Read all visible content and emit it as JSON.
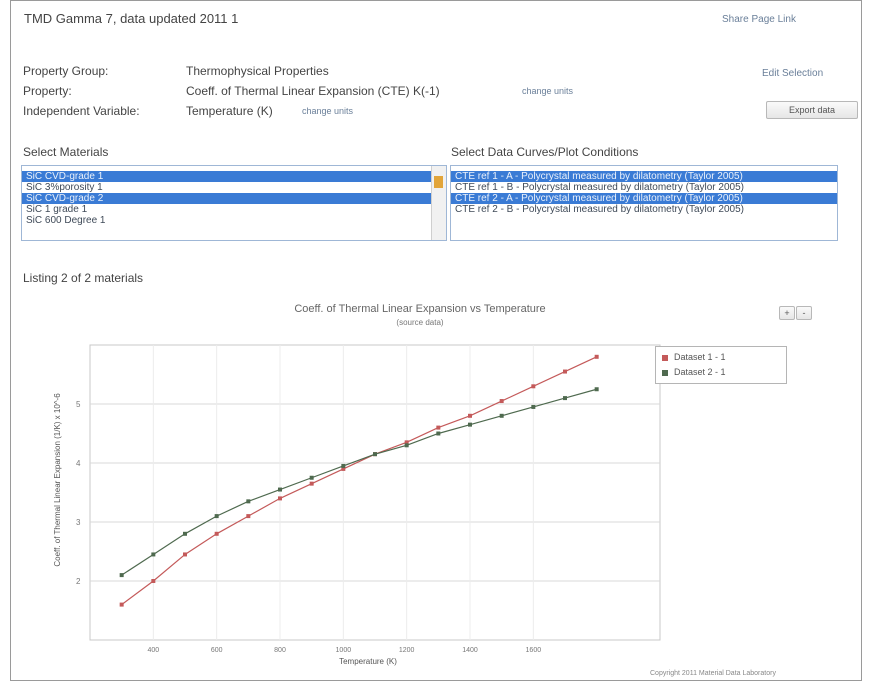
{
  "header": {
    "title": "TMD Gamma 7, data updated 2011 1",
    "link_right": "Share Page Link"
  },
  "fields": {
    "property_group_label": "Property Group:",
    "property_group_value": "Thermophysical Properties",
    "property_label": "Property:",
    "property_value": "Coeff. of Thermal Linear Expansion (CTE) K(-1)",
    "property_link": "change units",
    "indep_label": "Independent Variable:",
    "indep_value": "Temperature (K)",
    "indep_link": "change units",
    "edit_link": "Edit Selection",
    "export_button": "Export data"
  },
  "materials": {
    "heading": "Select Materials",
    "items": [
      {
        "label": "SiC CVD-grade 1",
        "selected": true
      },
      {
        "label": "SiC 3%porosity 1",
        "selected": false
      },
      {
        "label": "SiC CVD-grade 2",
        "selected": true
      },
      {
        "label": "SiC 1 grade 1",
        "selected": false
      },
      {
        "label": "SiC 600 Degree 1",
        "selected": false
      }
    ]
  },
  "curves": {
    "heading": "Select Data Curves/Plot Conditions",
    "items": [
      {
        "label": "CTE ref 1 - A - Polycrystal measured by dilatometry (Taylor 2005)",
        "selected": true
      },
      {
        "label": "CTE ref 1 - B - Polycrystal measured by dilatometry (Taylor 2005)",
        "selected": false
      },
      {
        "label": "CTE ref 2 - A - Polycrystal measured by dilatometry (Taylor 2005)",
        "selected": true
      },
      {
        "label": "CTE ref 2 - B - Polycrystal measured by dilatometry (Taylor 2005)",
        "selected": false
      }
    ]
  },
  "listing": {
    "title": "Listing 2 of 2 materials"
  },
  "chart_data": {
    "type": "line",
    "title": "Coeff. of Thermal Linear Expansion vs Temperature",
    "subtitle": "(source data)",
    "xlabel": "Temperature (K)",
    "ylabel": "Coeff. of Thermal Linear Expansion (1/K) x 10^-6",
    "ylim": [
      1,
      6
    ],
    "xlim": [
      200,
      2000
    ],
    "yticks": [
      2,
      3,
      4,
      5
    ],
    "xticks": [
      400,
      600,
      800,
      1000,
      1200,
      1400,
      1600
    ],
    "grid": true,
    "legend_position": "top-right",
    "series": [
      {
        "name": "Dataset 1 - 1",
        "color": "#c45a5a",
        "x": [
          300,
          400,
          500,
          600,
          700,
          800,
          900,
          1000,
          1100,
          1200,
          1300,
          1400,
          1500,
          1600,
          1700,
          1800
        ],
        "y": [
          1.6,
          2.0,
          2.45,
          2.8,
          3.1,
          3.4,
          3.65,
          3.9,
          4.15,
          4.35,
          4.6,
          4.8,
          5.05,
          5.3,
          5.55,
          5.8
        ]
      },
      {
        "name": "Dataset 2 - 1",
        "color": "#4f6a4f",
        "x": [
          300,
          400,
          500,
          600,
          700,
          800,
          900,
          1000,
          1100,
          1200,
          1300,
          1400,
          1500,
          1600,
          1700,
          1800
        ],
        "y": [
          2.1,
          2.45,
          2.8,
          3.1,
          3.35,
          3.55,
          3.75,
          3.95,
          4.15,
          4.3,
          4.5,
          4.65,
          4.8,
          4.95,
          5.1,
          5.25
        ]
      }
    ]
  },
  "chart_controls": {
    "zoom_in": "+",
    "zoom_out": "-"
  },
  "footer": {
    "credit": "Copyright 2011 Material Data Laboratory"
  },
  "colors": {
    "accent": "#3a7bd5",
    "scroll_thumb": "#e2a53a"
  }
}
